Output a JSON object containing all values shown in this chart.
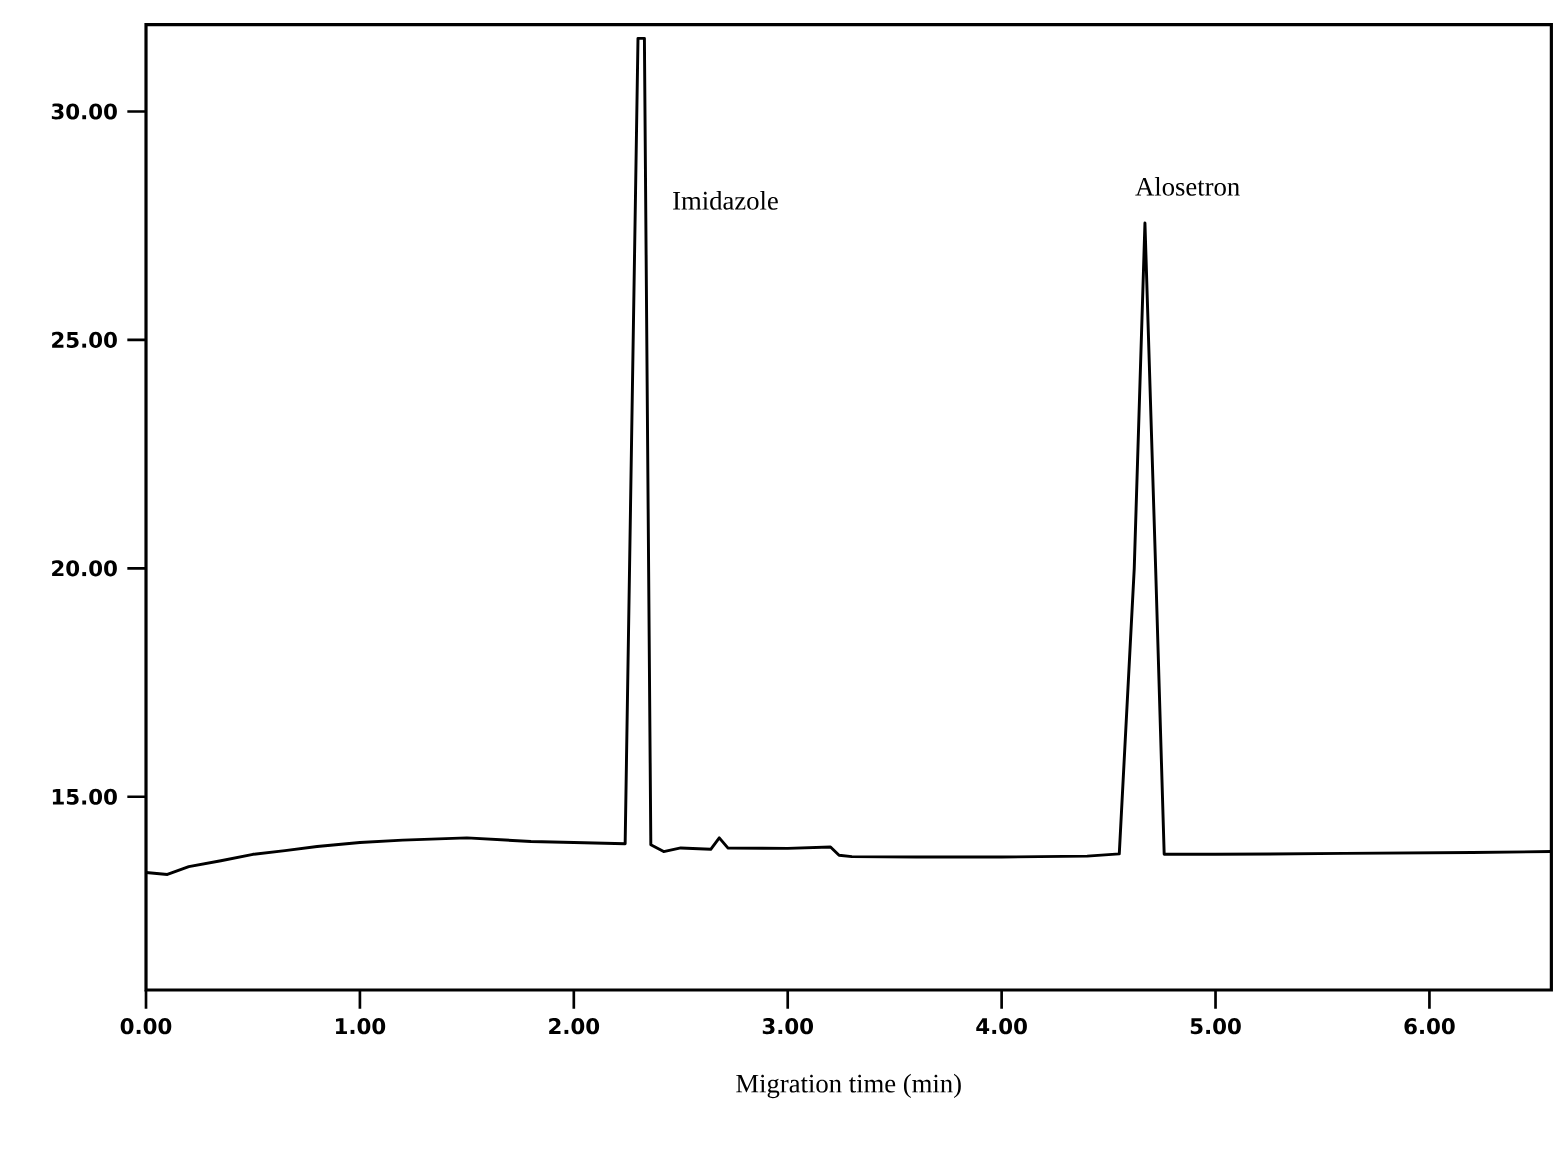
{
  "chart_data": {
    "type": "line",
    "xlabel": "Migration time (min)",
    "x": [
      0,
      0.1,
      0.2,
      0.35,
      0.5,
      0.65,
      0.8,
      1.0,
      1.2,
      1.5,
      1.8,
      2.0,
      2.24,
      2.3,
      2.33,
      2.36,
      2.42,
      2.5,
      2.64,
      2.68,
      2.72,
      3.0,
      3.2,
      3.24,
      3.3,
      3.6,
      4.0,
      4.4,
      4.55,
      4.62,
      4.67,
      4.72,
      4.76,
      5.0,
      5.6,
      6.2,
      6.57
    ],
    "series": [
      {
        "color": "#000000",
        "values": [
          13.34,
          13.3,
          13.47,
          13.6,
          13.74,
          13.82,
          13.91,
          14.0,
          14.05,
          14.1,
          14.02,
          14.0,
          13.97,
          31.6,
          31.6,
          13.95,
          13.8,
          13.88,
          13.85,
          14.1,
          13.88,
          13.87,
          13.9,
          13.72,
          13.69,
          13.68,
          13.68,
          13.7,
          13.75,
          20.0,
          27.56,
          20.0,
          13.74,
          13.74,
          13.76,
          13.78,
          13.8
        ]
      }
    ],
    "annotations": [
      "Imidazole",
      {
        "text": "Alosetron",
        "x": 4.67,
        "y": 27.56
      }
    ],
    "xlim": [
      0,
      6.57
    ],
    "ylim": [
      10.77,
      31.9
    ],
    "xticks": [
      {
        "value": 0,
        "label": "0.00"
      },
      {
        "value": 1,
        "label": "1.00"
      },
      {
        "value": 2,
        "label": "2.00"
      },
      {
        "value": 3,
        "label": "3.00"
      },
      {
        "value": 4,
        "label": "4.00"
      },
      {
        "value": 5,
        "label": "5.00"
      },
      {
        "value": 6,
        "label": "6.00"
      }
    ],
    "yticks": [
      {
        "value": 15,
        "label": "15.00"
      },
      {
        "value": 20,
        "label": "20.00"
      },
      {
        "value": 25,
        "label": "25.00"
      },
      {
        "value": 30,
        "label": "30.00"
      }
    ],
    "grid": false
  }
}
